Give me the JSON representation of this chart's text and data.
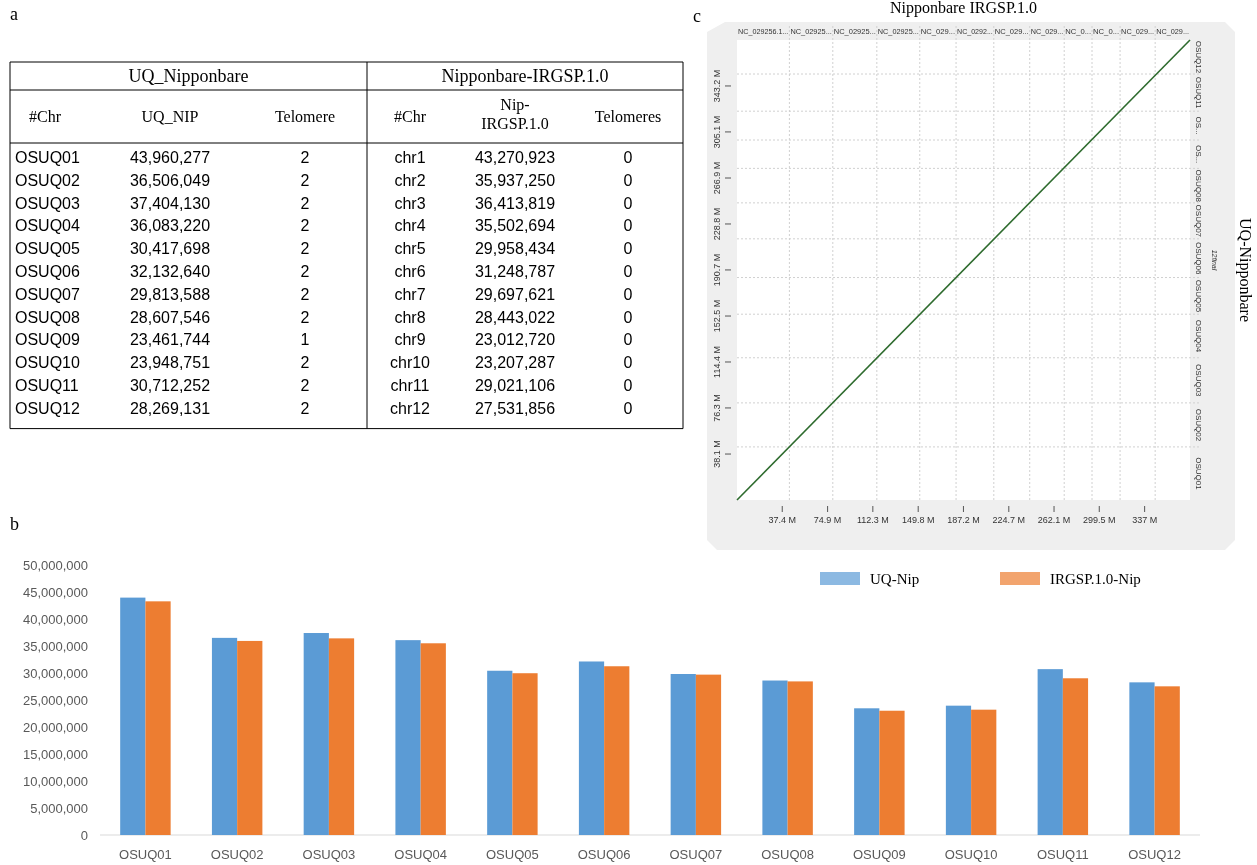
{
  "chart_data": [
    {
      "type": "other",
      "annotations": [
        "a",
        "UQ_Nipponbare",
        "Nipponbare-IRGSP.1.0"
      ],
      "categories": [
        "#Chr",
        "UQ_NIP",
        "Telomere",
        "#Chr",
        "Nip-IRGSP.1.0",
        "Telomeres"
      ],
      "cell_labels": [
        [
          "OSUQ01",
          "43,960,277",
          "2",
          "chr1",
          "43,270,923",
          "0"
        ],
        [
          "OSUQ02",
          "36,506,049",
          "2",
          "chr2",
          "35,937,250",
          "0"
        ],
        [
          "OSUQ03",
          "37,404,130",
          "2",
          "chr3",
          "36,413,819",
          "0"
        ],
        [
          "OSUQ04",
          "36,083,220",
          "2",
          "chr4",
          "35,502,694",
          "0"
        ],
        [
          "OSUQ05",
          "30,417,698",
          "2",
          "chr5",
          "29,958,434",
          "0"
        ],
        [
          "OSUQ06",
          "32,132,640",
          "2",
          "chr6",
          "31,248,787",
          "0"
        ],
        [
          "OSUQ07",
          "29,813,588",
          "2",
          "chr7",
          "29,697,621",
          "0"
        ],
        [
          "OSUQ08",
          "28,607,546",
          "2",
          "chr8",
          "28,443,022",
          "0"
        ],
        [
          "OSUQ09",
          "23,461,744",
          "1",
          "chr9",
          "23,012,720",
          "0"
        ],
        [
          "OSUQ10",
          "23,948,751",
          "2",
          "chr10",
          "23,207,287",
          "0"
        ],
        [
          "OSUQ11",
          "30,712,252",
          "2",
          "chr11",
          "29,021,106",
          "0"
        ],
        [
          "OSUQ12",
          "28,269,131",
          "2",
          "chr12",
          "27,531,856",
          "0"
        ]
      ]
    },
    {
      "type": "bar",
      "annotations": [
        "b"
      ],
      "categories": [
        "OSUQ01",
        "OSUQ02",
        "OSUQ03",
        "OSUQ04",
        "OSUQ05",
        "OSUQ06",
        "OSUQ07",
        "OSUQ08",
        "OSUQ09",
        "OSUQ10",
        "OSUQ11",
        "OSUQ12"
      ],
      "series": [
        {
          "name": "UQ-Nip",
          "color": "#5b9bd5",
          "values": [
            43960277,
            36506049,
            37404130,
            36083220,
            30417698,
            32132640,
            29813588,
            28607546,
            23461744,
            23948751,
            30712252,
            28269131
          ]
        },
        {
          "name": "IRGSP.1.0-Nip",
          "color": "#ed7d31",
          "values": [
            43270923,
            35937250,
            36413819,
            35502694,
            29958434,
            31248787,
            29697621,
            28443022,
            23012720,
            23207287,
            29021106,
            27531856
          ]
        }
      ],
      "ylim": [
        0,
        50000000
      ],
      "yticks": [
        {
          "value": 0,
          "label": "0"
        },
        {
          "value": 5000000,
          "label": "5,000,000"
        },
        {
          "value": 10000000,
          "label": "10,000,000"
        },
        {
          "value": 15000000,
          "label": "15,000,000"
        },
        {
          "value": 20000000,
          "label": "20,000,000"
        },
        {
          "value": 25000000,
          "label": "25,000,000"
        },
        {
          "value": 30000000,
          "label": "30,000,000"
        },
        {
          "value": 35000000,
          "label": "35,000,000"
        },
        {
          "value": 40000000,
          "label": "40,000,000"
        },
        {
          "value": 45000000,
          "label": "45,000,000"
        },
        {
          "value": 50000000,
          "label": "50,000,000"
        }
      ],
      "legend": "top right"
    },
    {
      "type": "line",
      "title": "Nipponbare IRGSP.1.0",
      "y2label": "UQ-Nipponbare",
      "annotations": [
        "c",
        "12final",
        "NC_029256.1...",
        "NC_02925...",
        "NC_02925...",
        "NC_02925...",
        "NC_029...",
        "NC_0292...",
        "NC_029...",
        "NC_029...",
        "NC_0...",
        "NC_0...",
        "NC_029...",
        "NC_029...",
        "OSUQ01",
        "OSUQ02",
        "OSUQ03",
        "OSUQ04",
        "OSUQ05",
        "OSUQ06",
        "OSUQ07",
        "OSUQ08",
        "OS...",
        "OS...",
        "OSUQ11",
        "OSUQ12"
      ],
      "marker": "none",
      "x": [
        0,
        374.5
      ],
      "series": [
        {
          "color": "#2e6b2e",
          "values": [
            0,
            381.3
          ]
        }
      ],
      "xlim": [
        0,
        374.5
      ],
      "ylim": [
        0,
        381.3
      ],
      "xticks": [
        {
          "value": 37.4,
          "label": "37.4 M"
        },
        {
          "value": 74.9,
          "label": "74.9 M"
        },
        {
          "value": 112.3,
          "label": "112.3 M"
        },
        {
          "value": 149.8,
          "label": "149.8 M"
        },
        {
          "value": 187.2,
          "label": "187.2 M"
        },
        {
          "value": 224.7,
          "label": "224.7 M"
        },
        {
          "value": 262.1,
          "label": "262.1 M"
        },
        {
          "value": 299.5,
          "label": "299.5 M"
        },
        {
          "value": 337,
          "label": "337 M"
        }
      ],
      "yticks": [
        {
          "value": 38.1,
          "label": "38.1 M"
        },
        {
          "value": 76.3,
          "label": "76.3 M"
        },
        {
          "value": 114.4,
          "label": "114.4 M"
        },
        {
          "value": 152.5,
          "label": "152.5 M"
        },
        {
          "value": 190.7,
          "label": "190.7 M"
        },
        {
          "value": 228.8,
          "label": "228.8 M"
        },
        {
          "value": 266.9,
          "label": "266.9 M"
        },
        {
          "value": 305.1,
          "label": "305.1 M"
        },
        {
          "value": 343.2,
          "label": "343.2 M"
        }
      ],
      "ref_lines": [
        {
          "axis": "x",
          "value": 43.3,
          "color": "#d0d0d0",
          "line_style": "dotted"
        },
        {
          "axis": "x",
          "value": 79.2,
          "color": "#d0d0d0",
          "line_style": "dotted"
        },
        {
          "axis": "x",
          "value": 115.6,
          "color": "#d0d0d0",
          "line_style": "dotted"
        },
        {
          "axis": "x",
          "value": 151.1,
          "color": "#d0d0d0",
          "line_style": "dotted"
        },
        {
          "axis": "x",
          "value": 181.1,
          "color": "#d0d0d0",
          "line_style": "dotted"
        },
        {
          "axis": "x",
          "value": 212.3,
          "color": "#d0d0d0",
          "line_style": "dotted"
        },
        {
          "axis": "x",
          "value": 242,
          "color": "#d0d0d0",
          "line_style": "dotted"
        },
        {
          "axis": "x",
          "value": 270.5,
          "color": "#d0d0d0",
          "line_style": "dotted"
        },
        {
          "axis": "x",
          "value": 293.5,
          "color": "#d0d0d0",
          "line_style": "dotted"
        },
        {
          "axis": "x",
          "value": 316.7,
          "color": "#d0d0d0",
          "line_style": "dotted"
        },
        {
          "axis": "x",
          "value": 345.7,
          "color": "#d0d0d0",
          "line_style": "dotted"
        },
        {
          "axis": "y",
          "value": 44,
          "color": "#d0d0d0",
          "line_style": "dotted"
        },
        {
          "axis": "y",
          "value": 80.5,
          "color": "#d0d0d0",
          "line_style": "dotted"
        },
        {
          "axis": "y",
          "value": 117.9,
          "color": "#d0d0d0",
          "line_style": "dotted"
        },
        {
          "axis": "y",
          "value": 154,
          "color": "#d0d0d0",
          "line_style": "dotted"
        },
        {
          "axis": "y",
          "value": 184.4,
          "color": "#d0d0d0",
          "line_style": "dotted"
        },
        {
          "axis": "y",
          "value": 216.5,
          "color": "#d0d0d0",
          "line_style": "dotted"
        },
        {
          "axis": "y",
          "value": 246.3,
          "color": "#d0d0d0",
          "line_style": "dotted"
        },
        {
          "axis": "y",
          "value": 274.9,
          "color": "#d0d0d0",
          "line_style": "dotted"
        },
        {
          "axis": "y",
          "value": 298.4,
          "color": "#d0d0d0",
          "line_style": "dotted"
        },
        {
          "axis": "y",
          "value": 322.3,
          "color": "#d0d0d0",
          "line_style": "dotted"
        },
        {
          "axis": "y",
          "value": 353.1,
          "color": "#d0d0d0",
          "line_style": "dotted"
        }
      ]
    }
  ]
}
